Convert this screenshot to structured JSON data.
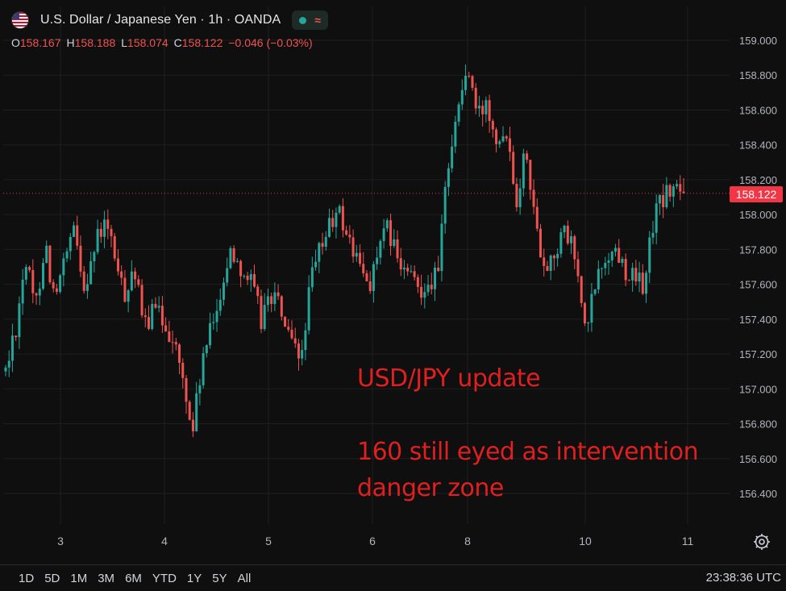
{
  "header": {
    "title": "U.S. Dollar / Japanese Yen · 1h · OANDA",
    "flag_icon": "usd-jpy-flag-icon",
    "status_icons": [
      "live-dot-icon",
      "waves-icon"
    ],
    "ohlc": {
      "o_label": "O",
      "o_value": "158.167",
      "h_label": "H",
      "h_value": "158.188",
      "l_label": "L",
      "l_value": "158.074",
      "c_label": "C",
      "c_value": "158.122",
      "change": "−0.046 (−0.03%)"
    }
  },
  "annotation": {
    "line1": "USD/JPY update",
    "line2": "160 still eyed as intervention",
    "line3": "danger zone"
  },
  "price_axis": {
    "ticks": [
      "159.000",
      "158.800",
      "158.600",
      "158.400",
      "158.200",
      "158.000",
      "157.800",
      "157.600",
      "157.400",
      "157.200",
      "157.000",
      "156.800",
      "156.600",
      "156.400"
    ],
    "current_price_label": "158.122"
  },
  "time_axis": {
    "ticks": [
      "3",
      "4",
      "5",
      "6",
      "8",
      "10",
      "11"
    ]
  },
  "bottom_bar": {
    "ranges": [
      "1D",
      "5D",
      "1M",
      "3M",
      "6M",
      "YTD",
      "1Y",
      "5Y",
      "All"
    ],
    "clock": "23:38:36 UTC",
    "settings_icon": "gear-icon"
  },
  "colors": {
    "up": "#26a69a",
    "down": "#ef5350",
    "background": "#0f0f0f",
    "grid": "#1f1f1f",
    "annotation": "#e01f1f",
    "price_line": "#f23645"
  },
  "chart_data": {
    "type": "candlestick",
    "title": "U.S. Dollar / Japanese Yen · 1h · OANDA",
    "interval": "1h",
    "ylim": [
      156.35,
      159.1
    ],
    "last_price": 158.122,
    "xlabel": "",
    "ylabel": "",
    "grid": true,
    "x_ticks": [
      "3",
      "4",
      "5",
      "6",
      "8",
      "10",
      "11"
    ],
    "close_series": [
      157.1,
      157.35,
      157.75,
      157.45,
      157.85,
      157.5,
      157.72,
      157.9,
      157.6,
      157.8,
      157.95,
      157.8,
      157.52,
      157.72,
      157.35,
      157.45,
      157.4,
      157.3,
      157.05,
      156.75,
      157.15,
      157.35,
      157.6,
      157.8,
      157.7,
      157.6,
      157.4,
      157.55,
      157.45,
      157.25,
      157.15,
      157.6,
      157.8,
      157.95,
      158.0,
      157.85,
      157.7,
      157.6,
      157.8,
      157.92,
      157.7,
      157.65,
      157.58,
      157.62,
      157.65,
      158.3,
      158.6,
      158.85,
      158.55,
      158.65,
      158.45,
      158.5,
      158.1,
      158.4,
      157.9,
      157.7,
      157.8,
      157.9,
      157.75,
      157.3,
      157.6,
      157.75,
      157.8,
      157.7,
      157.62,
      157.6,
      158.0,
      158.1,
      158.15,
      158.12
    ]
  }
}
